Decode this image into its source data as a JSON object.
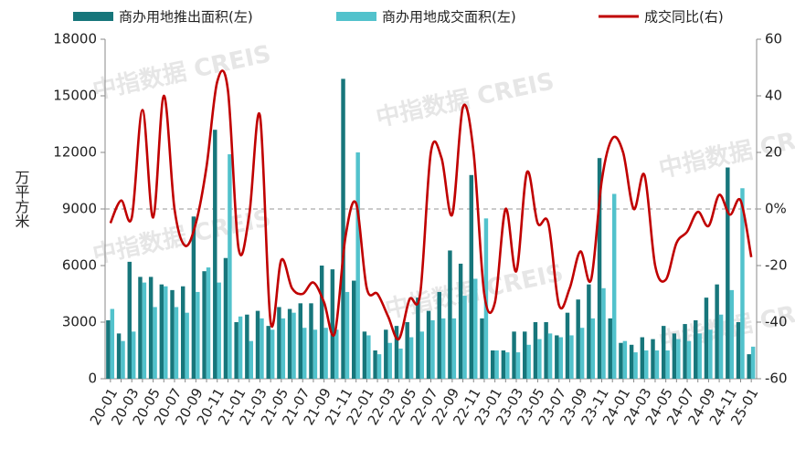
{
  "chart_data": {
    "type": "bar_line",
    "y_label": "万平方米",
    "watermark": "中指数据 CREIS",
    "categories": [
      "20-01",
      null,
      "20-03",
      null,
      "20-05",
      null,
      "20-07",
      null,
      "20-09",
      null,
      "20-11",
      null,
      "21-01",
      null,
      "21-03",
      null,
      "21-05",
      null,
      "21-07",
      null,
      "21-09",
      null,
      "21-11",
      null,
      "22-01",
      null,
      "22-03",
      null,
      "22-05",
      null,
      "22-07",
      null,
      "22-09",
      null,
      "22-11",
      null,
      "23-01",
      null,
      "23-03",
      null,
      "23-05",
      null,
      "23-07",
      null,
      "23-09",
      null,
      "23-11",
      null,
      "24-01",
      null,
      "24-03",
      null,
      "24-05",
      null,
      "24-07",
      null,
      "24-09",
      null,
      "24-11",
      null,
      "25-01"
    ],
    "series": [
      {
        "name": "商办用地推出面积(左)",
        "color": "#17767b",
        "kind": "bar",
        "axis": "y",
        "values": [
          3100,
          2400,
          6200,
          5400,
          5400,
          5000,
          4700,
          4900,
          8600,
          5700,
          13200,
          6400,
          3000,
          3400,
          3600,
          2800,
          3800,
          3700,
          4000,
          4000,
          6000,
          5800,
          15900,
          5200,
          2500,
          1500,
          2600,
          2800,
          3000,
          4300,
          3600,
          4600,
          6800,
          6100,
          10800,
          3200,
          1500,
          1500,
          2500,
          2500,
          3000,
          3000,
          2300,
          3500,
          4200,
          5000,
          11700,
          3200,
          1900,
          1800,
          2200,
          2100,
          2800,
          2400,
          2900,
          3100,
          4300,
          5000,
          11200,
          3000,
          1300
        ]
      },
      {
        "name": "商办用地成交面积(左)",
        "color": "#52c2cc",
        "kind": "bar",
        "axis": "y",
        "values": [
          3700,
          2000,
          2500,
          5100,
          3800,
          4900,
          3800,
          3500,
          4600,
          5900,
          5100,
          11900,
          3300,
          2000,
          3200,
          2600,
          3200,
          3500,
          2700,
          2600,
          2700,
          2600,
          4600,
          12000,
          2300,
          1300,
          1900,
          1600,
          2200,
          2500,
          3100,
          3200,
          3200,
          4400,
          5300,
          8500,
          1500,
          1400,
          1400,
          1800,
          2100,
          2400,
          2200,
          2300,
          2700,
          3200,
          4800,
          9800,
          2000,
          1400,
          1500,
          1500,
          1500,
          2100,
          2000,
          2400,
          2600,
          3400,
          4700,
          10100,
          1700
        ]
      },
      {
        "name": "成交同比(右)",
        "color": "#c00000",
        "kind": "line",
        "axis": "y2",
        "values": [
          -5,
          3,
          -3,
          35,
          -3,
          40,
          0,
          -13,
          -5,
          15,
          45,
          42,
          -14,
          -2,
          33,
          -40,
          -18,
          -28,
          -30,
          -26,
          -33,
          -44,
          -10,
          2,
          -28,
          -30,
          -38,
          -46,
          -32,
          -30,
          20,
          18,
          -2,
          36,
          20,
          -30,
          -33,
          0,
          -22,
          13,
          -5,
          -5,
          -34,
          -28,
          -15,
          -25,
          10,
          25,
          20,
          0,
          12,
          -20,
          -25,
          -12,
          -8,
          -1,
          -6,
          5,
          -2,
          3,
          -17
        ]
      }
    ],
    "ylim": [
      0,
      18000
    ],
    "yticks": [
      0,
      3000,
      6000,
      9000,
      12000,
      15000,
      18000
    ],
    "y2lim": [
      -60,
      60
    ],
    "y2ticks": [
      -60,
      -40,
      -20,
      {
        "value": 0,
        "label": "0%"
      },
      20,
      40,
      60
    ],
    "legend": "top"
  }
}
